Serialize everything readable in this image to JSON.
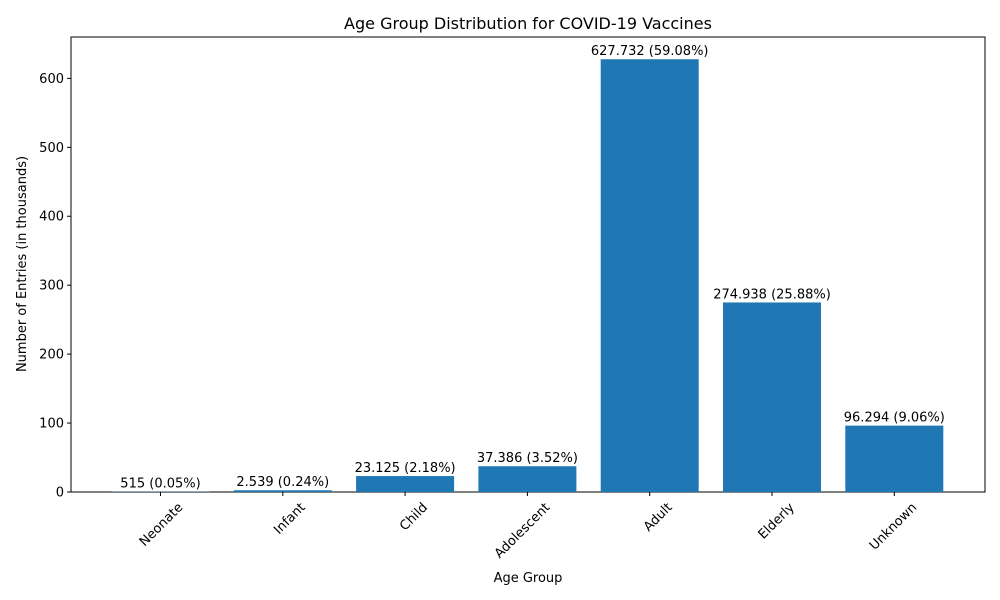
{
  "chart_data": {
    "type": "bar",
    "title": "Age Group Distribution for COVID-19 Vaccines",
    "xlabel": "Age Group",
    "ylabel": "Number of Entries (in thousands)",
    "categories": [
      "Neonate",
      "Infant",
      "Child",
      "Adolescent",
      "Adult",
      "Elderly",
      "Unknown"
    ],
    "values": [
      0.515,
      2.539,
      23.125,
      37.386,
      627.732,
      274.938,
      96.294
    ],
    "data_labels": [
      "515 (0.05%)",
      "2.539 (0.24%)",
      "23.125 (2.18%)",
      "37.386 (3.52%)",
      "627.732 (59.08%)",
      "274.938 (25.88%)",
      "96.294 (9.06%)"
    ],
    "ylim": [
      0,
      660
    ],
    "yticks": [
      0,
      100,
      200,
      300,
      400,
      500,
      600
    ],
    "ytick_labels": [
      "0",
      "100",
      "200",
      "300",
      "400",
      "500",
      "600"
    ],
    "bar_color": "#1f77b4",
    "grid": false,
    "legend": "none"
  }
}
